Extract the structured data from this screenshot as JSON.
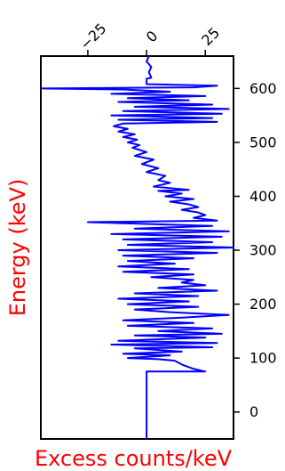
{
  "chart_data": {
    "type": "line",
    "orientation": "vertical",
    "xlabel": "Excess counts/keV",
    "ylabel": "Energy (keV)",
    "label_color": "#ff0000",
    "line_color": "#0000ff",
    "xlim": [
      -45,
      37
    ],
    "ylim": [
      -50,
      660
    ],
    "x_ticks": [
      -25,
      0,
      25
    ],
    "x_tick_labels": [
      "−25",
      "0",
      "25"
    ],
    "y_ticks": [
      0,
      100,
      200,
      300,
      400,
      500,
      600
    ],
    "y_tick_labels": [
      "0",
      "100",
      "200",
      "300",
      "400",
      "500",
      "600"
    ],
    "x_ticks_position": "top",
    "y_ticks_position": "right",
    "grid": false,
    "series": [
      {
        "points": [
          [
            0,
            -50
          ],
          [
            0,
            75
          ],
          [
            25,
            75
          ],
          [
            20,
            80
          ],
          [
            15,
            88
          ],
          [
            12,
            95
          ],
          [
            5,
            98
          ],
          [
            -8,
            100
          ],
          [
            10,
            105
          ],
          [
            -10,
            108
          ],
          [
            15,
            112
          ],
          [
            -5,
            118
          ],
          [
            28,
            120
          ],
          [
            -15,
            125
          ],
          [
            30,
            128
          ],
          [
            -12,
            132
          ],
          [
            25,
            138
          ],
          [
            -5,
            142
          ],
          [
            32,
            145
          ],
          [
            5,
            150
          ],
          [
            28,
            155
          ],
          [
            -8,
            160
          ],
          [
            20,
            165
          ],
          [
            -10,
            170
          ],
          [
            15,
            175
          ],
          [
            35,
            180
          ],
          [
            10,
            185
          ],
          [
            -5,
            190
          ],
          [
            22,
            195
          ],
          [
            -8,
            200
          ],
          [
            18,
            205
          ],
          [
            -12,
            210
          ],
          [
            22,
            215
          ],
          [
            -5,
            220
          ],
          [
            30,
            225
          ],
          [
            5,
            230
          ],
          [
            25,
            235
          ],
          [
            15,
            240
          ],
          [
            20,
            245
          ],
          [
            2,
            250
          ],
          [
            20,
            255
          ],
          [
            -10,
            260
          ],
          [
            18,
            265
          ],
          [
            -12,
            270
          ],
          [
            12,
            275
          ],
          [
            -8,
            280
          ],
          [
            20,
            285
          ],
          [
            -10,
            290
          ],
          [
            30,
            295
          ],
          [
            -12,
            300
          ],
          [
            37,
            305
          ],
          [
            -8,
            310
          ],
          [
            28,
            315
          ],
          [
            -10,
            320
          ],
          [
            32,
            325
          ],
          [
            -15,
            330
          ],
          [
            35,
            335
          ],
          [
            -5,
            340
          ],
          [
            28,
            345
          ],
          [
            -25,
            352
          ],
          [
            30,
            355
          ],
          [
            20,
            360
          ],
          [
            25,
            365
          ],
          [
            22,
            370
          ],
          [
            15,
            375
          ],
          [
            22,
            380
          ],
          [
            18,
            385
          ],
          [
            10,
            390
          ],
          [
            20,
            395
          ],
          [
            8,
            400
          ],
          [
            15,
            405
          ],
          [
            5,
            410
          ],
          [
            18,
            412
          ],
          [
            3,
            418
          ],
          [
            10,
            425
          ],
          [
            5,
            430
          ],
          [
            8,
            438
          ],
          [
            0,
            445
          ],
          [
            5,
            452
          ],
          [
            -2,
            460
          ],
          [
            3,
            468
          ],
          [
            -5,
            475
          ],
          [
            0,
            482
          ],
          [
            -6,
            490
          ],
          [
            -3,
            495
          ],
          [
            -8,
            500
          ],
          [
            -4,
            505
          ],
          [
            -10,
            510
          ],
          [
            -5,
            515
          ],
          [
            -12,
            520
          ],
          [
            -8,
            525
          ],
          [
            -14,
            530
          ],
          [
            -10,
            535
          ],
          [
            30,
            538
          ],
          [
            -12,
            542
          ],
          [
            28,
            545
          ],
          [
            -15,
            550
          ],
          [
            32,
            553
          ],
          [
            -10,
            558
          ],
          [
            35,
            562
          ],
          [
            -5,
            566
          ],
          [
            28,
            570
          ],
          [
            -12,
            575
          ],
          [
            18,
            578
          ],
          [
            -8,
            582
          ],
          [
            25,
            586
          ],
          [
            -15,
            590
          ],
          [
            10,
            594
          ],
          [
            -10,
            598
          ],
          [
            -45,
            600
          ],
          [
            20,
            602
          ],
          [
            30,
            605
          ],
          [
            0,
            608
          ],
          [
            0,
            618
          ],
          [
            2,
            620
          ],
          [
            1,
            630
          ],
          [
            2,
            640
          ],
          [
            0,
            650
          ],
          [
            1,
            660
          ]
        ]
      }
    ]
  }
}
